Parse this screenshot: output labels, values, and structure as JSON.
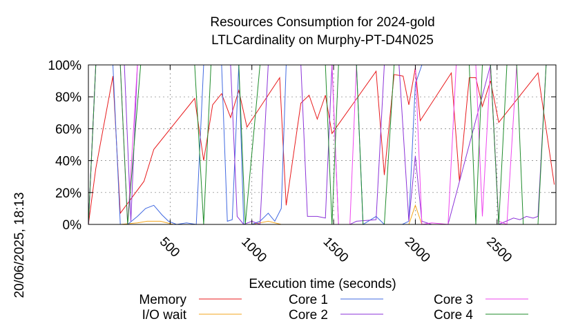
{
  "chart_data": {
    "type": "line",
    "title_line1": "Resources Consumption for 2024-gold",
    "title_line2": "LTLCardinality on Murphy-PT-D4N025",
    "xlabel": "Execution time (seconds)",
    "ylabel": "",
    "side_label": "20/06/2025, 18:13",
    "xlim": [
      0,
      2860
    ],
    "ylim": [
      0,
      100
    ],
    "x_ticks": [
      500,
      1000,
      1500,
      2000,
      2500
    ],
    "x_tick_labels": [
      "500",
      "1000",
      "1500",
      "2000",
      "2500"
    ],
    "y_ticks": [
      0,
      20,
      40,
      60,
      80,
      100
    ],
    "y_tick_labels": [
      "0%",
      "20%",
      "40%",
      "60%",
      "80%",
      "100%"
    ],
    "legend_position": "bottom",
    "series": [
      {
        "name": "Memory",
        "color": "#e8191b",
        "points": [
          [
            0,
            0
          ],
          [
            45,
            35
          ],
          [
            150,
            93
          ],
          [
            195,
            7
          ],
          [
            340,
            27
          ],
          [
            400,
            47
          ],
          [
            650,
            79
          ],
          [
            705,
            40
          ],
          [
            760,
            75
          ],
          [
            815,
            82
          ],
          [
            870,
            67
          ],
          [
            920,
            84
          ],
          [
            970,
            61
          ],
          [
            1170,
            92
          ],
          [
            1210,
            12
          ],
          [
            1300,
            76
          ],
          [
            1350,
            81
          ],
          [
            1400,
            66
          ],
          [
            1450,
            81
          ],
          [
            1490,
            57
          ],
          [
            1760,
            96
          ],
          [
            1810,
            31
          ],
          [
            1870,
            94
          ],
          [
            1925,
            93
          ],
          [
            1960,
            75
          ],
          [
            2000,
            98
          ],
          [
            2030,
            65
          ],
          [
            2220,
            95
          ],
          [
            2270,
            27
          ],
          [
            2330,
            92
          ],
          [
            2370,
            92
          ],
          [
            2410,
            74
          ],
          [
            2460,
            90
          ],
          [
            2510,
            64
          ],
          [
            2750,
            95
          ],
          [
            2850,
            25
          ]
        ]
      },
      {
        "name": "I/O wait",
        "color": "#f3a51b",
        "points": [
          [
            0,
            0
          ],
          [
            195,
            0
          ],
          [
            300,
            1
          ],
          [
            360,
            2
          ],
          [
            440,
            2
          ],
          [
            520,
            0
          ],
          [
            1000,
            0
          ],
          [
            1100,
            2
          ],
          [
            1180,
            0
          ],
          [
            1760,
            0
          ],
          [
            1960,
            0
          ],
          [
            2000,
            12
          ],
          [
            2040,
            0
          ],
          [
            2860,
            0
          ]
        ]
      },
      {
        "name": "Core 1",
        "color": "#4169e1",
        "points": [
          [
            0,
            0
          ],
          [
            45,
            100
          ],
          [
            150,
            100
          ],
          [
            195,
            0
          ],
          [
            240,
            0
          ],
          [
            300,
            5
          ],
          [
            350,
            10
          ],
          [
            400,
            12
          ],
          [
            450,
            6
          ],
          [
            490,
            2
          ],
          [
            540,
            0
          ],
          [
            600,
            1
          ],
          [
            660,
            0
          ],
          [
            705,
            100
          ],
          [
            815,
            100
          ],
          [
            850,
            2
          ],
          [
            880,
            3
          ],
          [
            920,
            100
          ],
          [
            950,
            0
          ],
          [
            1000,
            0
          ],
          [
            1050,
            2
          ],
          [
            1100,
            7
          ],
          [
            1140,
            2
          ],
          [
            1180,
            10
          ],
          [
            1210,
            100
          ],
          [
            1640,
            100
          ],
          [
            1680,
            0
          ],
          [
            1760,
            5
          ],
          [
            1810,
            0
          ],
          [
            1920,
            0
          ],
          [
            1960,
            2
          ],
          [
            2000,
            88
          ],
          [
            2040,
            100
          ],
          [
            2860,
            100
          ]
        ]
      },
      {
        "name": "Core 2",
        "color": "#8b32d8",
        "points": [
          [
            0,
            0
          ],
          [
            45,
            100
          ],
          [
            220,
            100
          ],
          [
            260,
            2
          ],
          [
            300,
            100
          ],
          [
            870,
            100
          ],
          [
            910,
            5
          ],
          [
            950,
            0
          ],
          [
            1000,
            2
          ],
          [
            1050,
            0
          ],
          [
            1100,
            100
          ],
          [
            1300,
            100
          ],
          [
            1340,
            5
          ],
          [
            1400,
            5
          ],
          [
            1450,
            4
          ],
          [
            1490,
            100
          ],
          [
            1530,
            0
          ],
          [
            1600,
            0
          ],
          [
            1640,
            2
          ],
          [
            1760,
            3
          ],
          [
            1810,
            100
          ],
          [
            1900,
            100
          ],
          [
            1960,
            2
          ],
          [
            2000,
            43
          ],
          [
            2040,
            2
          ],
          [
            2100,
            0
          ],
          [
            2200,
            0
          ],
          [
            2460,
            100
          ],
          [
            2510,
            0
          ],
          [
            2600,
            4
          ],
          [
            2640,
            3
          ],
          [
            2680,
            5
          ],
          [
            2720,
            4
          ],
          [
            2750,
            5
          ],
          [
            2800,
            100
          ],
          [
            2860,
            100
          ]
        ]
      },
      {
        "name": "Core 3",
        "color": "#ee44ee",
        "points": [
          [
            0,
            0
          ],
          [
            45,
            100
          ],
          [
            195,
            100
          ],
          [
            240,
            0
          ],
          [
            300,
            100
          ],
          [
            1490,
            100
          ],
          [
            1530,
            0
          ],
          [
            1600,
            0
          ],
          [
            1640,
            100
          ],
          [
            2000,
            100
          ],
          [
            2040,
            0
          ],
          [
            2100,
            1
          ],
          [
            2200,
            0
          ],
          [
            2250,
            100
          ],
          [
            2370,
            100
          ],
          [
            2410,
            5
          ],
          [
            2460,
            100
          ],
          [
            2510,
            2
          ],
          [
            2560,
            0
          ],
          [
            2620,
            100
          ],
          [
            2860,
            100
          ]
        ]
      },
      {
        "name": "Core 4",
        "color": "#1e8b2a",
        "points": [
          [
            0,
            0
          ],
          [
            45,
            100
          ],
          [
            195,
            100
          ],
          [
            240,
            0
          ],
          [
            320,
            100
          ],
          [
            650,
            100
          ],
          [
            705,
            0
          ],
          [
            750,
            100
          ],
          [
            920,
            100
          ],
          [
            960,
            0
          ],
          [
            1050,
            100
          ],
          [
            1240,
            100
          ],
          [
            1300,
            100
          ],
          [
            1350,
            100
          ],
          [
            1400,
            100
          ],
          [
            1450,
            100
          ],
          [
            1490,
            0
          ],
          [
            1530,
            100
          ],
          [
            1640,
            100
          ],
          [
            1680,
            0
          ],
          [
            1810,
            0
          ],
          [
            1870,
            100
          ],
          [
            2000,
            100
          ],
          [
            2040,
            100
          ],
          [
            2200,
            100
          ],
          [
            2330,
            100
          ],
          [
            2370,
            0
          ],
          [
            2410,
            100
          ],
          [
            2460,
            100
          ],
          [
            2510,
            0
          ],
          [
            2560,
            100
          ],
          [
            2620,
            100
          ],
          [
            2660,
            0
          ],
          [
            2750,
            0
          ],
          [
            2800,
            100
          ],
          [
            2860,
            100
          ]
        ]
      }
    ]
  }
}
